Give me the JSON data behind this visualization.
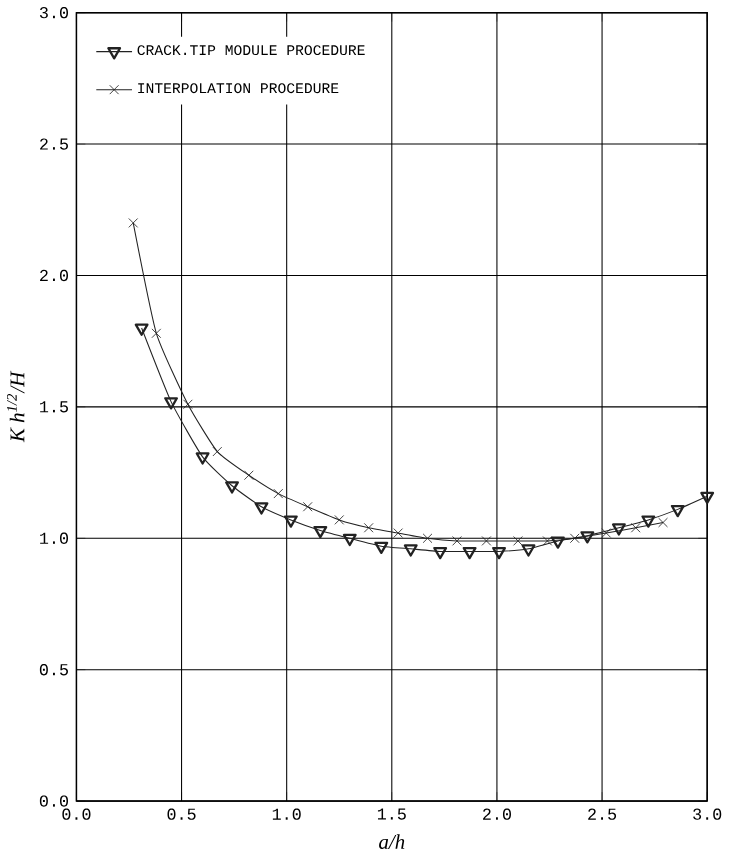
{
  "chart_data": {
    "type": "line",
    "xlabel": "a/h",
    "ylabel": "K h$^{1/2}$/H",
    "xlim": [
      0,
      3
    ],
    "ylim": [
      0,
      3
    ],
    "xticks": [
      {
        "value": 0,
        "label": "0.0"
      },
      {
        "value": 0.5,
        "label": "0.5"
      },
      {
        "value": 1,
        "label": "1.0"
      },
      {
        "value": 1.5,
        "label": "1.5"
      },
      {
        "value": 2,
        "label": "2.0"
      },
      {
        "value": 2.5,
        "label": "2.5"
      },
      {
        "value": 3,
        "label": "3.0"
      }
    ],
    "yticks": [
      {
        "value": 0,
        "label": "0.0"
      },
      {
        "value": 0.5,
        "label": "0.5"
      },
      {
        "value": 1,
        "label": "1.0"
      },
      {
        "value": 1.5,
        "label": "1.5"
      },
      {
        "value": 2,
        "label": "2.0"
      },
      {
        "value": 2.5,
        "label": "2.5"
      },
      {
        "value": 3,
        "label": "3.0"
      }
    ],
    "grid": true,
    "legend": "top left",
    "line_style": "solid",
    "series": [
      {
        "name": "CRACK.TIP MODULE PROCEDURE",
        "color": "#222222",
        "marker": "triangle",
        "x": [
          0.31,
          0.45,
          0.6,
          0.74,
          0.88,
          1.02,
          1.16,
          1.3,
          1.45,
          1.59,
          1.73,
          1.87,
          2.01,
          2.15,
          2.29,
          2.43,
          2.58,
          2.72,
          2.86,
          3.0
        ],
        "values": [
          1.8,
          1.52,
          1.31,
          1.2,
          1.12,
          1.07,
          1.03,
          1.0,
          0.97,
          0.96,
          0.95,
          0.95,
          0.95,
          0.96,
          0.99,
          1.01,
          1.04,
          1.07,
          1.11,
          1.16
        ]
      },
      {
        "name": "INTERPOLATION PROCEDURE",
        "color": "#222222",
        "marker": "cross",
        "x": [
          0.27,
          0.38,
          0.53,
          0.67,
          0.82,
          0.96,
          1.1,
          1.25,
          1.39,
          1.53,
          1.67,
          1.81,
          1.95,
          2.1,
          2.24,
          2.37,
          2.52,
          2.66,
          2.79
        ],
        "values": [
          2.2,
          1.78,
          1.51,
          1.33,
          1.24,
          1.17,
          1.12,
          1.07,
          1.04,
          1.02,
          1.0,
          0.99,
          0.99,
          0.99,
          0.99,
          1.0,
          1.02,
          1.04,
          1.06
        ]
      }
    ]
  }
}
